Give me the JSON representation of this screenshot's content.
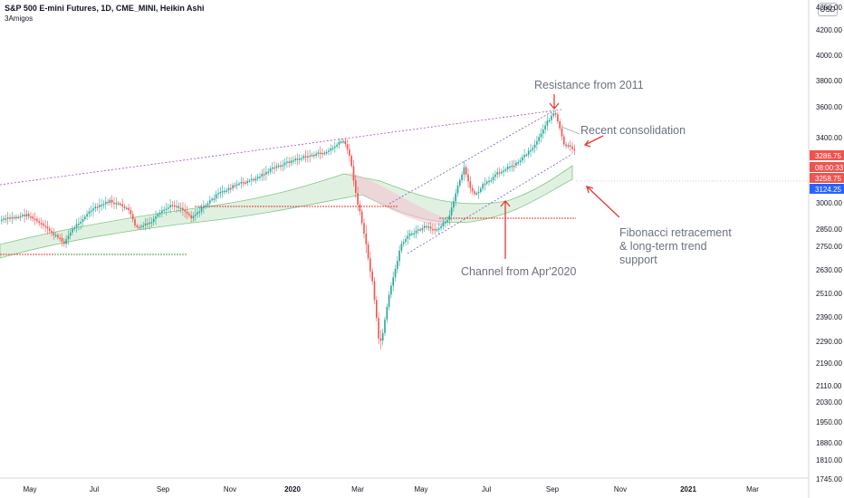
{
  "header": {
    "title": "S&P 500 E-mini Futures, 1D, CME_MINI, Heikin Ashi",
    "indicator": "3Amigos",
    "currency_button": "USD"
  },
  "y_axis_ticks": [
    "4350.00",
    "4200.00",
    "4000.00",
    "3800.00",
    "3600.00",
    "3400.00",
    "3000.00",
    "2850.00",
    "2750.00",
    "2630.00",
    "2510.00",
    "2390.00",
    "2290.00",
    "2190.00",
    "2110.00",
    "2030.00",
    "1950.00",
    "1880.00",
    "1810.00",
    "1745.00"
  ],
  "x_axis_ticks": [
    {
      "label": "May",
      "bold": false
    },
    {
      "label": "Jul",
      "bold": false
    },
    {
      "label": "Sep",
      "bold": false
    },
    {
      "label": "Nov",
      "bold": false
    },
    {
      "label": "2020",
      "bold": true
    },
    {
      "label": "Mar",
      "bold": false
    },
    {
      "label": "May",
      "bold": false
    },
    {
      "label": "Jul",
      "bold": false
    },
    {
      "label": "Sep",
      "bold": false
    },
    {
      "label": "Nov",
      "bold": false
    },
    {
      "label": "2021",
      "bold": true
    },
    {
      "label": "Mar",
      "bold": false
    }
  ],
  "price_tags": [
    {
      "label": "3286.75",
      "color": "#ef5350"
    },
    {
      "label": "08:00:33",
      "color": "#ef5350"
    },
    {
      "label": "3258.75",
      "color": "#ef5350"
    },
    {
      "label": "3124.25",
      "color": "#2962ff"
    }
  ],
  "annotations": {
    "resistance": "Resistance from 2011",
    "consolidation": "Recent consolidation",
    "channel": "Channel from Apr'2020",
    "fib_line1": "Fibonacci retracement",
    "fib_line2": "& long-term trend",
    "fib_line3": "support"
  },
  "colors": {
    "up": "#26a69a",
    "down": "#ef5350",
    "trendline": "#9c27b0",
    "channel": "#7e57c2",
    "support_red": "#e53935",
    "support_green": "#43a047",
    "arrow": "#e53935"
  }
}
